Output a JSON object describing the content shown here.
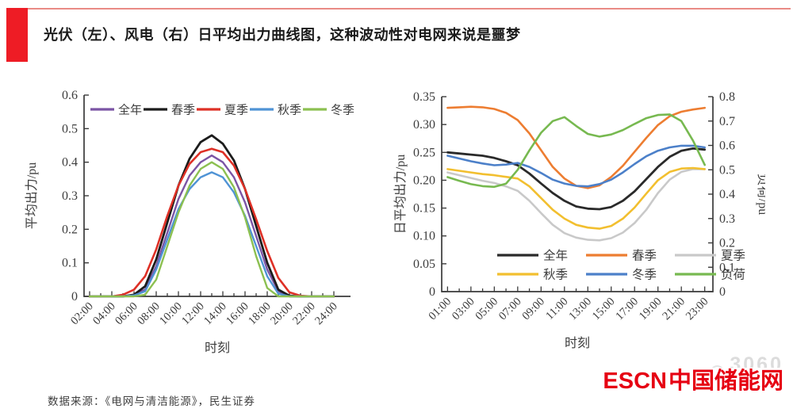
{
  "page": {
    "background": "#ffffff"
  },
  "header": {
    "title": "光伏（左）、风电（右）日平均出力曲线图，这种波动性对电网来说是噩梦",
    "accent_color": "#ee1c25",
    "topline_color": "#e98b85"
  },
  "footer": {
    "source": "数据来源：《电网与清洁能源》，民生证券",
    "watermark_text": "3060",
    "logo_latin": "ESCN",
    "logo_cjk": "中国储能网",
    "logo_color": "#e60012"
  },
  "chart_data": [
    {
      "id": "pv",
      "type": "line",
      "xlabel": "时刻",
      "ylabel": "平均出力/pu",
      "ylim": [
        0,
        0.6
      ],
      "grid": false,
      "legend_position": "top-row",
      "x": [
        2,
        3,
        4,
        5,
        6,
        7,
        8,
        9,
        10,
        11,
        12,
        13,
        14,
        15,
        16,
        17,
        18,
        19,
        20,
        21,
        22,
        23,
        24
      ],
      "xtick_values": [
        2,
        4,
        6,
        8,
        10,
        12,
        14,
        16,
        18,
        20,
        22,
        24
      ],
      "xtick_labels": [
        "02:00",
        "04:00",
        "06:00",
        "08:00",
        "10:00",
        "12:00",
        "14:00",
        "16:00",
        "18:00",
        "20:00",
        "22:00",
        "24:00"
      ],
      "ytick_values": [
        0,
        0.1,
        0.2,
        0.3,
        0.4,
        0.5,
        0.6
      ],
      "ytick_labels": [
        "0",
        "0.1",
        "0.2",
        "0.3",
        "0.4",
        "0.5",
        "0.6"
      ],
      "series": [
        {
          "name": "全年",
          "color": "#7b55a5",
          "width": 2.4,
          "values": [
            0,
            0,
            0,
            0,
            0.005,
            0.02,
            0.09,
            0.19,
            0.29,
            0.36,
            0.4,
            0.42,
            0.4,
            0.355,
            0.28,
            0.18,
            0.08,
            0.015,
            0,
            0,
            0,
            0,
            0
          ]
        },
        {
          "name": "春季",
          "color": "#1c1c1c",
          "width": 2.8,
          "values": [
            0,
            0,
            0,
            0,
            0.005,
            0.03,
            0.11,
            0.22,
            0.33,
            0.41,
            0.46,
            0.48,
            0.455,
            0.405,
            0.32,
            0.21,
            0.1,
            0.02,
            0.002,
            0,
            0,
            0,
            0
          ]
        },
        {
          "name": "夏季",
          "color": "#de3026",
          "width": 2.6,
          "values": [
            0,
            0,
            0,
            0.005,
            0.02,
            0.06,
            0.14,
            0.24,
            0.33,
            0.395,
            0.43,
            0.44,
            0.43,
            0.39,
            0.32,
            0.23,
            0.135,
            0.055,
            0.012,
            0.002,
            0,
            0,
            0
          ]
        },
        {
          "name": "秋季",
          "color": "#4f93d5",
          "width": 2.4,
          "values": [
            0,
            0,
            0,
            0,
            0.003,
            0.015,
            0.08,
            0.17,
            0.26,
            0.32,
            0.355,
            0.37,
            0.355,
            0.31,
            0.24,
            0.15,
            0.06,
            0.008,
            0,
            0,
            0,
            0,
            0
          ]
        },
        {
          "name": "冬季",
          "color": "#8cc051",
          "width": 2.4,
          "values": [
            0,
            0,
            0,
            0,
            0,
            0.005,
            0.05,
            0.15,
            0.25,
            0.33,
            0.38,
            0.4,
            0.38,
            0.325,
            0.235,
            0.12,
            0.025,
            0,
            0,
            0,
            0,
            0,
            0
          ]
        }
      ]
    },
    {
      "id": "wind",
      "type": "line",
      "xlabel": "时刻",
      "ylabel": "日平均出力/pu",
      "ylabel_right": "负荷/pu",
      "ylim": [
        0,
        0.35
      ],
      "ylim_right": [
        0,
        0.8
      ],
      "grid": false,
      "legend_position": "bottom-grid",
      "legend_columns": 3,
      "x": [
        1,
        2,
        3,
        4,
        5,
        6,
        7,
        8,
        9,
        10,
        11,
        12,
        13,
        14,
        15,
        16,
        17,
        18,
        19,
        20,
        21,
        22,
        23
      ],
      "xtick_values": [
        1,
        3,
        5,
        7,
        9,
        11,
        13,
        15,
        17,
        19,
        21,
        23
      ],
      "xtick_labels": [
        "01:00",
        "03:00",
        "05:00",
        "07:00",
        "09:00",
        "11:00",
        "13:00",
        "15:00",
        "17:00",
        "19:00",
        "21:00",
        "23:00"
      ],
      "ytick_values": [
        0,
        0.05,
        0.1,
        0.15,
        0.2,
        0.25,
        0.3,
        0.35
      ],
      "ytick_labels": [
        "0",
        "0.05",
        "0.10",
        "0.15",
        "0.20",
        "0.25",
        "0.30",
        "0.35"
      ],
      "ytick_values_right": [
        0,
        0.1,
        0.2,
        0.3,
        0.4,
        0.5,
        0.6,
        0.7,
        0.8
      ],
      "ytick_labels_right": [
        "0",
        "0.1",
        "0.2",
        "0.3",
        "0.4",
        "0.5",
        "0.6",
        "0.7",
        "0.8"
      ],
      "series": [
        {
          "name": "全年",
          "color": "#2a2a2a",
          "width": 2.8,
          "axis": "left",
          "values": [
            0.25,
            0.248,
            0.246,
            0.244,
            0.24,
            0.234,
            0.227,
            0.212,
            0.194,
            0.177,
            0.163,
            0.153,
            0.149,
            0.148,
            0.152,
            0.163,
            0.18,
            0.202,
            0.224,
            0.242,
            0.253,
            0.257,
            0.255
          ]
        },
        {
          "name": "春季",
          "color": "#ed7d31",
          "width": 2.6,
          "axis": "left",
          "values": [
            0.33,
            0.331,
            0.332,
            0.331,
            0.328,
            0.321,
            0.308,
            0.284,
            0.254,
            0.224,
            0.203,
            0.19,
            0.186,
            0.191,
            0.206,
            0.226,
            0.251,
            0.276,
            0.299,
            0.315,
            0.323,
            0.327,
            0.33
          ]
        },
        {
          "name": "夏季",
          "color": "#c9c9c9",
          "width": 2.6,
          "axis": "left",
          "values": [
            0.214,
            0.209,
            0.204,
            0.199,
            0.195,
            0.189,
            0.181,
            0.163,
            0.141,
            0.12,
            0.105,
            0.097,
            0.093,
            0.092,
            0.096,
            0.106,
            0.123,
            0.147,
            0.177,
            0.201,
            0.215,
            0.22,
            0.22
          ]
        },
        {
          "name": "秋季",
          "color": "#f2bf2f",
          "width": 2.6,
          "axis": "left",
          "values": [
            0.22,
            0.217,
            0.214,
            0.211,
            0.209,
            0.206,
            0.203,
            0.189,
            0.168,
            0.147,
            0.131,
            0.12,
            0.115,
            0.113,
            0.118,
            0.131,
            0.151,
            0.176,
            0.2,
            0.215,
            0.221,
            0.222,
            0.22
          ]
        },
        {
          "name": "冬季",
          "color": "#4c80c9",
          "width": 2.6,
          "axis": "left",
          "values": [
            0.244,
            0.239,
            0.234,
            0.23,
            0.227,
            0.228,
            0.231,
            0.224,
            0.213,
            0.201,
            0.194,
            0.19,
            0.189,
            0.193,
            0.201,
            0.214,
            0.229,
            0.243,
            0.253,
            0.259,
            0.262,
            0.262,
            0.259
          ]
        },
        {
          "name": "负荷",
          "color": "#77b950",
          "width": 2.6,
          "axis": "right",
          "values": [
            0.47,
            0.455,
            0.441,
            0.433,
            0.43,
            0.443,
            0.5,
            0.58,
            0.652,
            0.7,
            0.716,
            0.68,
            0.647,
            0.636,
            0.645,
            0.663,
            0.688,
            0.712,
            0.725,
            0.727,
            0.7,
            0.62,
            0.52
          ]
        }
      ]
    }
  ]
}
